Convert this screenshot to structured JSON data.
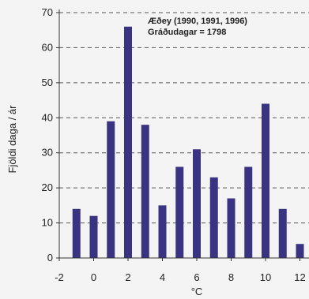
{
  "chart_data": {
    "type": "bar",
    "title": "",
    "xlabel": "°C",
    "ylabel": "Fjöldi daga / ár",
    "annotations": [
      "Æðey (1990, 1991, 1996)",
      "Gráðudagar = 1798"
    ],
    "x": [
      -1,
      0,
      1,
      2,
      3,
      4,
      5,
      6,
      7,
      8,
      9,
      10,
      11,
      12
    ],
    "values": [
      14,
      12,
      39,
      66,
      38,
      15,
      26,
      31,
      23,
      17,
      26,
      44,
      14,
      4
    ],
    "xlim": [
      -2,
      16
    ],
    "ylim": [
      0,
      70
    ],
    "xticks": [
      "-2",
      "0",
      "2",
      "4",
      "6",
      "8",
      "10",
      "12",
      "14",
      "16"
    ],
    "yticks": [
      "0",
      "10",
      "20",
      "30",
      "40",
      "50",
      "60",
      "70"
    ],
    "grid": "horizontal-dashed",
    "bar_color": "#3a3382",
    "grid_color": "#555555"
  }
}
